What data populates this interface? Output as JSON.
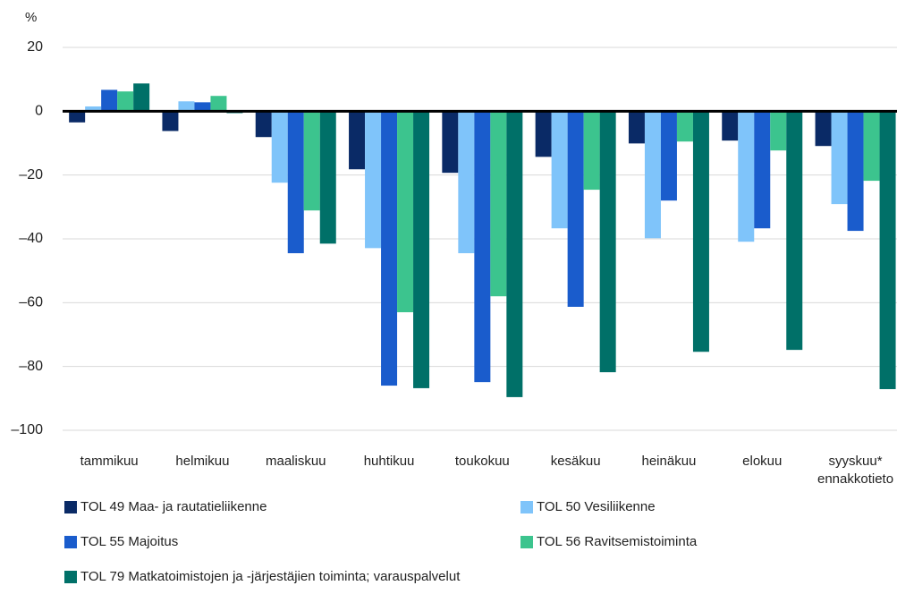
{
  "chart_data": {
    "type": "bar",
    "y_label": "%",
    "categories": [
      "tammikuu",
      "helmikuu",
      "maaliskuu",
      "huhtikuu",
      "toukokuu",
      "kesäkuu",
      "heinäkuu",
      "elokuu",
      "syyskuu* ennakkotieto"
    ],
    "series": [
      {
        "name": "TOL 49 Maa- ja rautatieliikenne",
        "color": "#0a2a66",
        "values": [
          -3.5,
          -6.2,
          -8.1,
          -18.2,
          -19.3,
          -14.3,
          -10.1,
          -9.2,
          -10.9
        ]
      },
      {
        "name": "TOL 50 Vesiliikenne",
        "color": "#7fc4fa",
        "values": [
          1.5,
          3.1,
          -22.4,
          -42.9,
          -44.5,
          -36.7,
          -39.8,
          -40.9,
          -29.1
        ]
      },
      {
        "name": "TOL 55 Majoitus",
        "color": "#1a5ccc",
        "values": [
          6.7,
          2.8,
          -44.5,
          -86.0,
          -84.9,
          -61.3,
          -28.0,
          -36.7,
          -37.5
        ]
      },
      {
        "name": "TOL 56 Ravitsemistoiminta",
        "color": "#3cc48e",
        "values": [
          6.2,
          4.8,
          -31.1,
          -63.0,
          -58.0,
          -24.6,
          -9.5,
          -12.3,
          -21.8
        ]
      },
      {
        "name": "TOL 79 Matkatoimistojen ja -järjestäjien toiminta; varauspalvelut",
        "color": "#007068",
        "values": [
          8.7,
          -0.6,
          -41.5,
          -86.8,
          -89.6,
          -81.8,
          -75.4,
          -74.8,
          -87.1
        ]
      }
    ],
    "ylim": [
      -100,
      20
    ],
    "yticks": [
      {
        "value": -100,
        "label": "–100"
      },
      {
        "value": -80,
        "label": "–80"
      },
      {
        "value": -60,
        "label": "–60"
      },
      {
        "value": -40,
        "label": "–40"
      },
      {
        "value": -20,
        "label": "–20"
      },
      0,
      20
    ],
    "grid": true
  }
}
